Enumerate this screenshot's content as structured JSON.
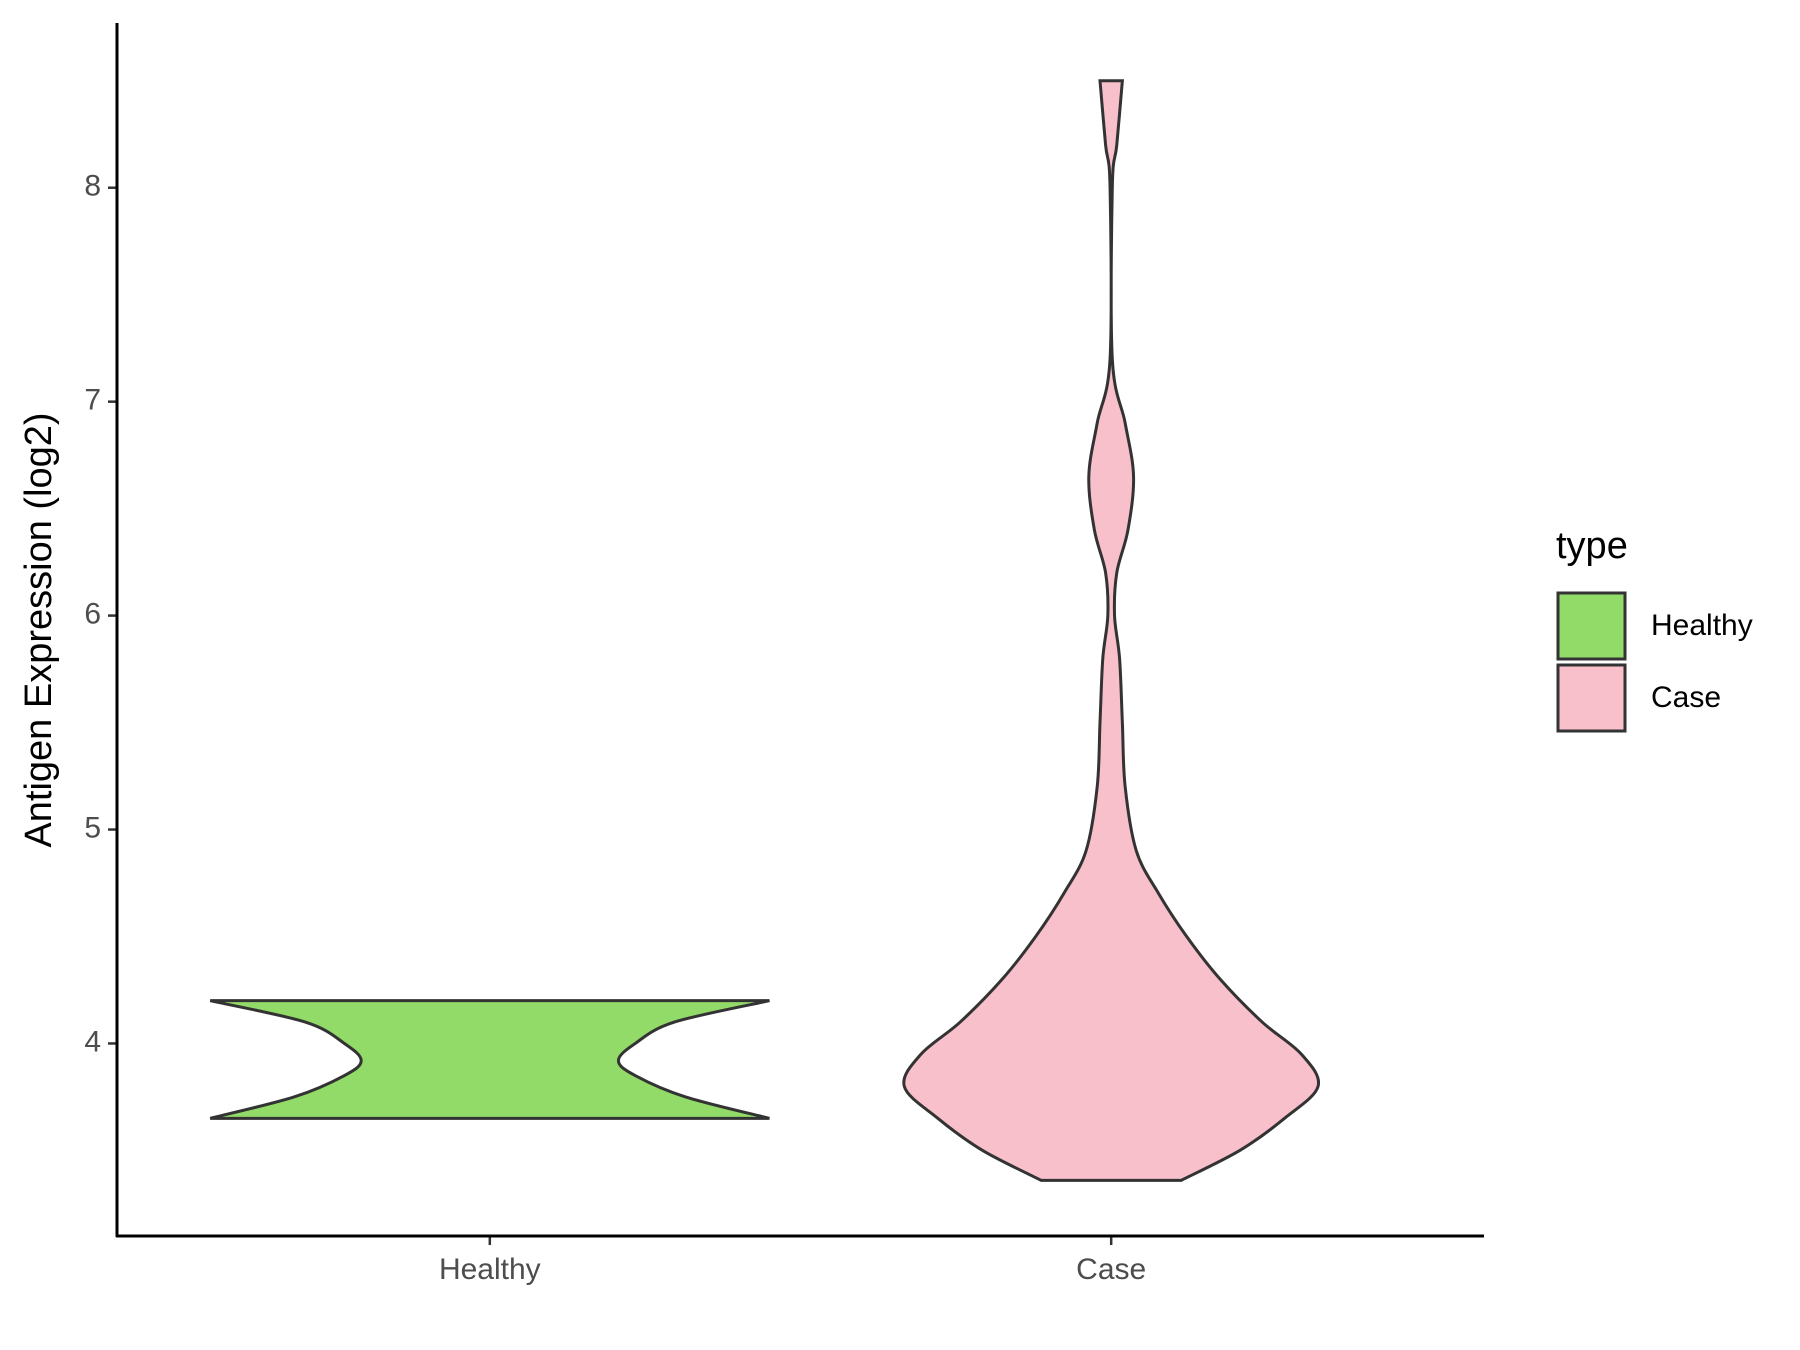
{
  "chart_data": {
    "type": "violin",
    "y_label": "Antigen Expression (log2)",
    "categories": [
      "Healthy",
      "Case"
    ],
    "legend_title": "type",
    "legend": "right",
    "ylim": [
      3.1,
      8.77
    ],
    "yticks": [
      4,
      5,
      6,
      7,
      8
    ],
    "series": [
      {
        "name": "Healthy",
        "color": "#93DB69",
        "y": [
          3.65,
          3.75,
          3.85,
          3.92,
          4.0,
          4.1,
          4.2
        ],
        "width": [
          1,
          0.7,
          0.52,
          0.46,
          0.52,
          0.66,
          1
        ]
      },
      {
        "name": "Case",
        "color": "#F8C0CB",
        "y": [
          3.36,
          3.5,
          3.65,
          3.8,
          3.95,
          4.1,
          4.3,
          4.5,
          4.7,
          4.9,
          5.2,
          5.5,
          5.8,
          6.0,
          6.2,
          6.4,
          6.65,
          6.9,
          7.2,
          8.0,
          8.2,
          8.5
        ],
        "width": [
          0.25,
          0.46,
          0.62,
          0.74,
          0.68,
          0.54,
          0.39,
          0.27,
          0.17,
          0.09,
          0.05,
          0.04,
          0.03,
          0.012,
          0.02,
          0.06,
          0.08,
          0.05,
          0.004,
          0.004,
          0.02,
          0.04
        ]
      }
    ]
  }
}
